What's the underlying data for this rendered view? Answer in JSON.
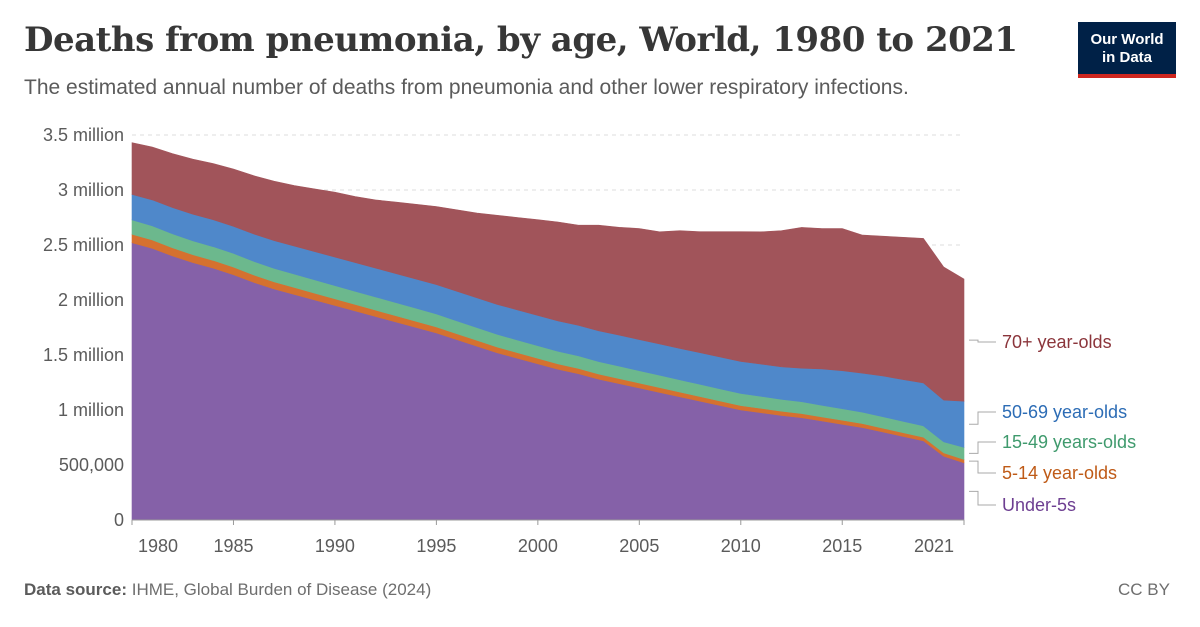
{
  "header": {
    "title": "Deaths from pneumonia, by age, World, 1980 to 2021",
    "subtitle": "The estimated annual number of deaths from pneumonia and other lower respiratory infections.",
    "logo_line1": "Our World",
    "logo_line2": "in Data",
    "logo_bg": "#002147",
    "logo_accent": "#ce261e"
  },
  "footer": {
    "source_label": "Data source:",
    "source_text": "IHME, Global Burden of Disease (2024)",
    "license": "CC BY"
  },
  "chart_data": {
    "type": "area",
    "stacked": true,
    "grid": "horizontal-dashed",
    "legend_placement": "right",
    "xlim": [
      1980,
      2021
    ],
    "ylim": [
      0,
      3500000
    ],
    "y_ticks": [
      {
        "value": 0,
        "label": "0"
      },
      {
        "value": 500000,
        "label": "500,000"
      },
      {
        "value": 1000000,
        "label": "1 million"
      },
      {
        "value": 1500000,
        "label": "1.5 million"
      },
      {
        "value": 2000000,
        "label": "2 million"
      },
      {
        "value": 2500000,
        "label": "2.5 million"
      },
      {
        "value": 3000000,
        "label": "3 million"
      },
      {
        "value": 3500000,
        "label": "3.5 million"
      }
    ],
    "x_ticks": [
      {
        "value": 1980,
        "label": "1980"
      },
      {
        "value": 1985,
        "label": "1985"
      },
      {
        "value": 1990,
        "label": "1990"
      },
      {
        "value": 1995,
        "label": "1995"
      },
      {
        "value": 2000,
        "label": "2000"
      },
      {
        "value": 2005,
        "label": "2005"
      },
      {
        "value": 2010,
        "label": "2010"
      },
      {
        "value": 2015,
        "label": "2015"
      },
      {
        "value": 2021,
        "label": "2021"
      }
    ],
    "x": [
      1980,
      1981,
      1982,
      1983,
      1984,
      1985,
      1986,
      1987,
      1988,
      1989,
      1990,
      1991,
      1992,
      1993,
      1994,
      1995,
      1996,
      1997,
      1998,
      1999,
      2000,
      2001,
      2002,
      2003,
      2004,
      2005,
      2006,
      2007,
      2008,
      2009,
      2010,
      2011,
      2012,
      2013,
      2014,
      2015,
      2016,
      2017,
      2018,
      2019,
      2020,
      2021
    ],
    "series": [
      {
        "name": "Under-5s",
        "color": "#8561a8",
        "values": [
          2520000,
          2470000,
          2400000,
          2340000,
          2290000,
          2230000,
          2160000,
          2100000,
          2050000,
          2000000,
          1950000,
          1900000,
          1850000,
          1800000,
          1750000,
          1700000,
          1640000,
          1580000,
          1520000,
          1470000,
          1420000,
          1370000,
          1330000,
          1280000,
          1240000,
          1200000,
          1160000,
          1120000,
          1080000,
          1040000,
          1000000,
          975000,
          950000,
          930000,
          900000,
          870000,
          840000,
          800000,
          760000,
          720000,
          580000,
          520000
        ]
      },
      {
        "name": "5-14 year-olds",
        "color": "#d5712f",
        "values": [
          78000,
          76000,
          74000,
          72000,
          70000,
          69000,
          67000,
          65000,
          64000,
          62000,
          61000,
          59000,
          58000,
          57000,
          56000,
          55000,
          54000,
          53000,
          52000,
          51000,
          50000,
          49000,
          48000,
          47000,
          46000,
          45000,
          44000,
          43000,
          42000,
          41000,
          40000,
          40000,
          39000,
          38000,
          37000,
          37000,
          36000,
          35000,
          34000,
          33000,
          30000,
          30000
        ]
      },
      {
        "name": "15-49 years-olds",
        "color": "#6cb88d",
        "values": [
          130000,
          128000,
          127000,
          126000,
          125000,
          125000,
          124000,
          123000,
          122000,
          121000,
          120000,
          120000,
          120000,
          119000,
          119000,
          118000,
          117000,
          116000,
          116000,
          115000,
          115000,
          114000,
          114000,
          113000,
          113000,
          112000,
          112000,
          111000,
          111000,
          110000,
          110000,
          109000,
          108000,
          107000,
          106000,
          105000,
          104000,
          104000,
          103000,
          103000,
          100000,
          110000
        ]
      },
      {
        "name": "50-69 year-olds",
        "color": "#4f88ca",
        "values": [
          232000,
          236000,
          239000,
          242000,
          245000,
          246000,
          249000,
          252000,
          254000,
          257000,
          259000,
          261000,
          262000,
          264000,
          265000,
          267000,
          269000,
          271000,
          272000,
          274000,
          275000,
          276000,
          278000,
          280000,
          282000,
          283000,
          284000,
          286000,
          288000,
          290000,
          291000,
          293000,
          295000,
          305000,
          330000,
          345000,
          355000,
          370000,
          380000,
          390000,
          380000,
          420000
        ]
      },
      {
        "name": "70+ year-olds",
        "color": "#a1545a",
        "values": [
          470000,
          480000,
          490000,
          500000,
          510000,
          520000,
          530000,
          540000,
          550000,
          570000,
          590000,
          600000,
          620000,
          650000,
          680000,
          710000,
          740000,
          770000,
          810000,
          840000,
          870000,
          900000,
          910000,
          960000,
          980000,
          1010000,
          1020000,
          1070000,
          1100000,
          1140000,
          1180000,
          1203000,
          1238000,
          1280000,
          1277000,
          1293000,
          1255000,
          1271000,
          1293000,
          1314000,
          1210000,
          1110000
        ]
      }
    ],
    "legend": [
      {
        "name": "70+ year-olds",
        "color": "#8b353b"
      },
      {
        "name": "50-69 year-olds",
        "color": "#2c6cb5"
      },
      {
        "name": "15-49 years-olds",
        "color": "#3f9a6d"
      },
      {
        "name": "5-14 year-olds",
        "color": "#bf5a16"
      },
      {
        "name": "Under-5s",
        "color": "#6d3e91"
      }
    ]
  }
}
